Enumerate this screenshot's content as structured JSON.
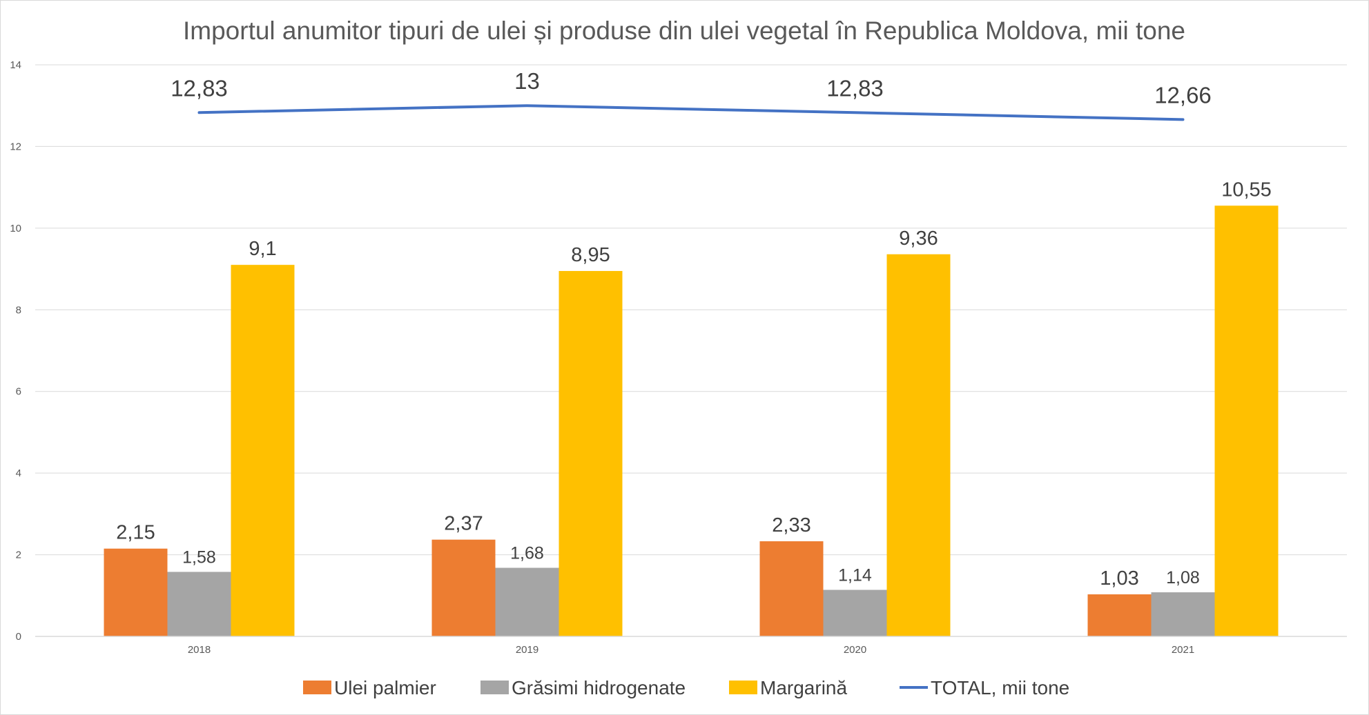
{
  "chart_data": {
    "type": "bar",
    "title": "Importul anumitor tipuri de ulei și produse din ulei vegetal în Republica Moldova, mii tone",
    "categories": [
      "2018",
      "2019",
      "2020",
      "2021"
    ],
    "series": [
      {
        "name": "Ulei palmier",
        "kind": "bar",
        "color": "#ED7D31",
        "values": [
          2.15,
          2.37,
          2.33,
          1.03
        ],
        "labels": [
          "2,15",
          "2,37",
          "2,33",
          "1,03"
        ]
      },
      {
        "name": "Grăsimi hidrogenate",
        "kind": "bar",
        "color": "#A5A5A5",
        "values": [
          1.58,
          1.68,
          1.14,
          1.08
        ],
        "labels": [
          "1,58",
          "1,68",
          "1,14",
          "1,08"
        ]
      },
      {
        "name": "Margarină",
        "kind": "bar",
        "color": "#FFC000",
        "values": [
          9.1,
          8.95,
          9.36,
          10.55
        ],
        "labels": [
          "9,1",
          "8,95",
          "9,36",
          "10,55"
        ]
      },
      {
        "name": "TOTAL, mii tone",
        "kind": "line",
        "color": "#4472C4",
        "values": [
          12.83,
          13,
          12.83,
          12.66
        ],
        "labels": [
          "12,83",
          "13",
          "12,83",
          "12,66"
        ]
      }
    ],
    "ylim": [
      0,
      14
    ],
    "yticks": [
      0,
      2,
      4,
      6,
      8,
      10,
      12,
      14
    ],
    "xlabel": "",
    "ylabel": "",
    "grid": true,
    "legend": "bottom"
  }
}
